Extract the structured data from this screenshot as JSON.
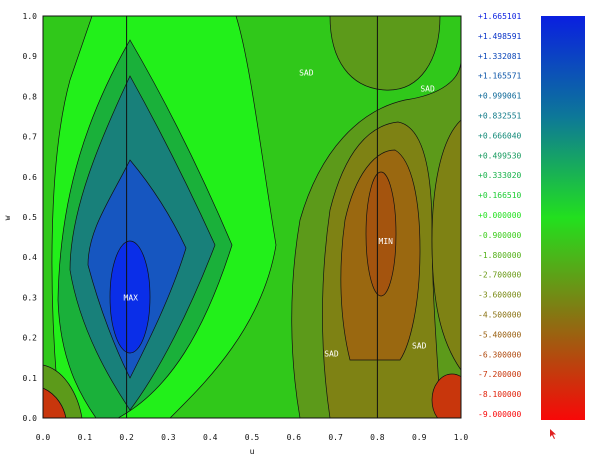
{
  "chart_data": {
    "type": "contour",
    "title": "",
    "xlabel": "u",
    "ylabel": "w",
    "xlim": [
      0.0,
      1.0
    ],
    "ylim": [
      0.0,
      1.0
    ],
    "x_ticks": [
      "0.0",
      "0.1",
      "0.2",
      "0.3",
      "0.4",
      "0.5",
      "0.6",
      "0.7",
      "0.8",
      "0.9",
      "1.0"
    ],
    "y_ticks": [
      "0.0",
      "0.1",
      "0.2",
      "0.3",
      "0.4",
      "0.5",
      "0.6",
      "0.7",
      "0.8",
      "0.9",
      "1.0"
    ],
    "vertical_lines": [
      0.2,
      0.8
    ],
    "annotations": [
      {
        "text": "MAX",
        "x": 0.21,
        "y": 0.3
      },
      {
        "text": "MIN",
        "x": 0.82,
        "y": 0.44
      },
      {
        "text": "SAD",
        "x": 0.63,
        "y": 0.86
      },
      {
        "text": "SAD",
        "x": 0.92,
        "y": 0.82
      },
      {
        "text": "SAD",
        "x": 0.69,
        "y": 0.16
      },
      {
        "text": "SAD",
        "x": 0.9,
        "y": 0.18
      }
    ],
    "legend": {
      "placement": "right",
      "levels": [
        {
          "label": "+1.665101",
          "color": "#0a1fe0"
        },
        {
          "label": "+1.498591",
          "color": "#0a34c8"
        },
        {
          "label": "+1.332081",
          "color": "#0b46b8"
        },
        {
          "label": "+1.165571",
          "color": "#0c56a8"
        },
        {
          "label": "+0.999061",
          "color": "#0d6898"
        },
        {
          "label": "+0.832551",
          "color": "#107a88"
        },
        {
          "label": "+0.666040",
          "color": "#138a78"
        },
        {
          "label": "+0.499530",
          "color": "#169a5e"
        },
        {
          "label": "+0.333020",
          "color": "#18b24a"
        },
        {
          "label": "+0.166510",
          "color": "#1ecc34"
        },
        {
          "label": "+0.000000",
          "color": "#22e01e"
        },
        {
          "label": "-0.900000",
          "color": "#3acc1a"
        },
        {
          "label": "-1.800000",
          "color": "#52b018"
        },
        {
          "label": "-2.700000",
          "color": "#6a9a16"
        },
        {
          "label": "-3.600000",
          "color": "#7a8a14"
        },
        {
          "label": "-4.500000",
          "color": "#8a7212"
        },
        {
          "label": "-5.400000",
          "color": "#9a6010"
        },
        {
          "label": "-6.300000",
          "color": "#b04a0e"
        },
        {
          "label": "-7.200000",
          "color": "#c8360c"
        },
        {
          "label": "-8.100000",
          "color": "#e0220a"
        },
        {
          "label": "-9.000000",
          "color": "#f80808"
        }
      ]
    }
  },
  "colors": {
    "max_core": "#0a2ee8",
    "ring1": "#1656c0",
    "ring2": "#18807a",
    "ring3": "#1ab03a",
    "light_green": "#22f01a",
    "base_green": "#30c81a",
    "olive1": "#5c9a1a",
    "olive2": "#7e8214",
    "brown1": "#9a6810",
    "brown2": "#a4540e",
    "red_corner": "#c8360c"
  }
}
